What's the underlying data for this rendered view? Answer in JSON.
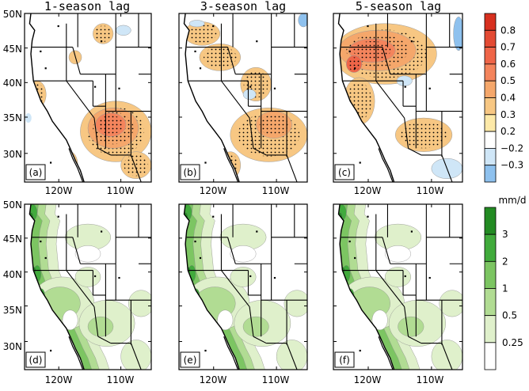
{
  "figure": {
    "column_titles": [
      "1-season lag",
      "3-season lag",
      "5-season lag"
    ],
    "panel_labels": [
      "(a)",
      "(b)",
      "(c)",
      "(d)",
      "(e)",
      "(f)"
    ],
    "lat_ticks": [
      "50N",
      "45N",
      "40N",
      "35N",
      "30N"
    ],
    "lon_ticks": [
      "120W",
      "110W"
    ],
    "top_colorbar": {
      "levels": [
        "0.8",
        "0.7",
        "0.6",
        "0.5",
        "0.4",
        "0.3",
        "0.2",
        "−0.2",
        "−0.3"
      ],
      "colors": [
        "#d7301f",
        "#e34a33",
        "#ef6548",
        "#f4845c",
        "#f5a76b",
        "#f7c783",
        "#fde9a8",
        "#ffffff",
        "#cfe6f7",
        "#8ec1ee"
      ]
    },
    "bottom_colorbar": {
      "unit": "mm/d",
      "levels": [
        "3",
        "2",
        "1",
        "0.5",
        "0.25"
      ],
      "colors": [
        "#238b23",
        "#41ab3c",
        "#7cc562",
        "#b1dc93",
        "#dff0cb",
        "#ffffff"
      ]
    }
  }
}
